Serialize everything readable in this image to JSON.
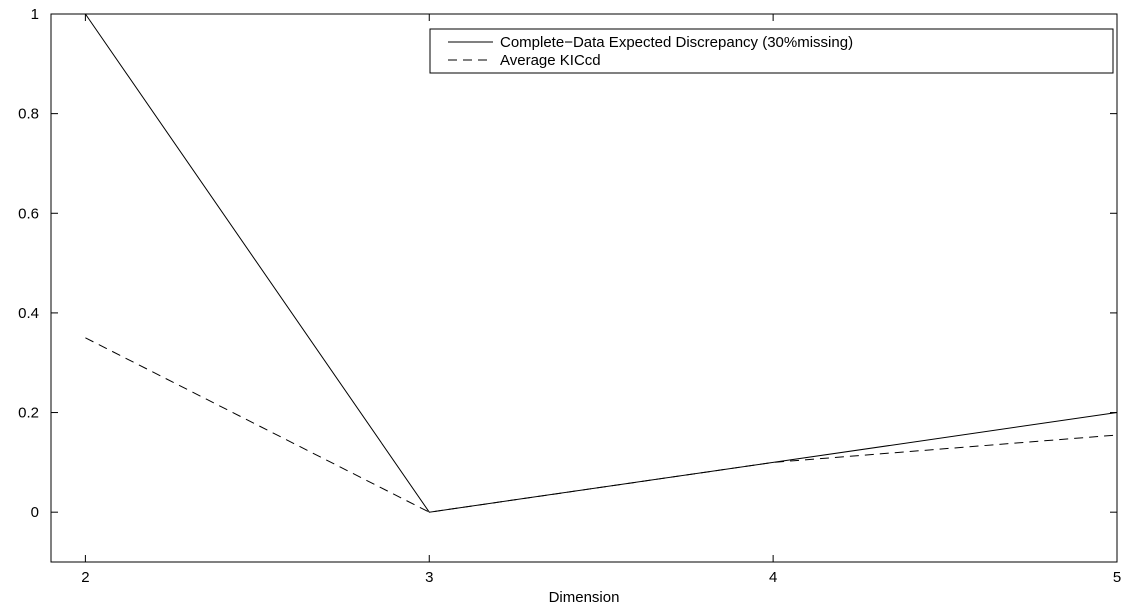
{
  "chart_data": {
    "type": "line",
    "title": "",
    "xlabel": "Dimension",
    "ylabel": "",
    "x": [
      2,
      3,
      4,
      5
    ],
    "xlim": [
      1.9,
      5
    ],
    "ylim": [
      -0.1,
      1
    ],
    "xticks": [
      2,
      3,
      4,
      5
    ],
    "yticks": [
      0,
      0.2,
      0.4,
      0.6,
      0.8,
      1
    ],
    "ytick_labels": [
      "0",
      "0.2",
      "0.4",
      "0.6",
      "0.8",
      "1"
    ],
    "xtick_labels": [
      "2",
      "3",
      "4",
      "5"
    ],
    "grid": false,
    "legend_position": "top-right",
    "series": [
      {
        "name": "Complete−Data Expected Discrepancy (30%missing)",
        "values": [
          1.0,
          0.0,
          0.1,
          0.2
        ],
        "line_style": "solid",
        "color": "#000000"
      },
      {
        "name": "Average KICcd",
        "values": [
          0.35,
          0.0,
          0.1,
          0.155
        ],
        "line_style": "dashed",
        "color": "#000000"
      }
    ]
  }
}
